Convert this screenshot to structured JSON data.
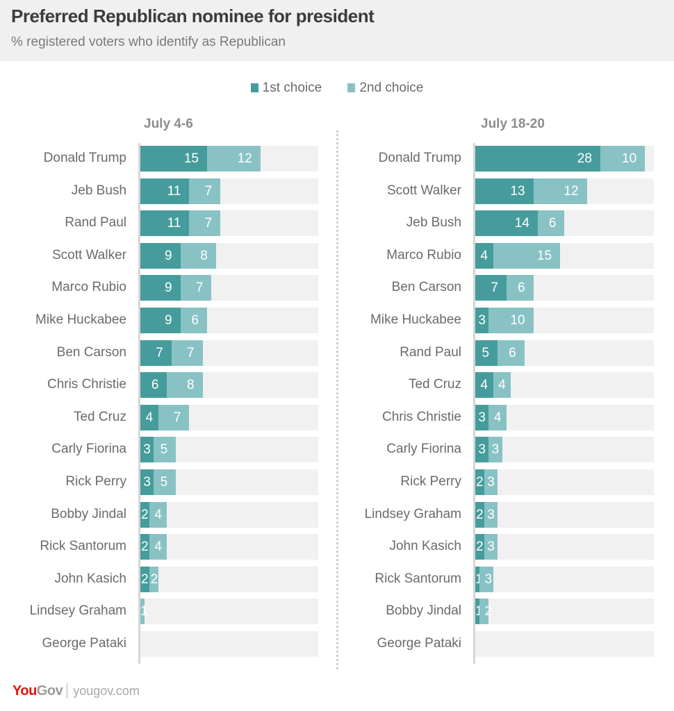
{
  "header": {
    "title": "Preferred Republican nominee for president",
    "subtitle": "% registered voters who identify as Republican"
  },
  "footer": {
    "logo_you": "You",
    "logo_gov": "Gov",
    "url": "yougov.com"
  },
  "colors": {
    "first_choice": "#469c9c",
    "second_choice": "#89c2c4",
    "track": "#f1f1f1",
    "logo_red": "#e3120b"
  },
  "chart_data": [
    {
      "type": "bar",
      "orientation": "horizontal",
      "stacked": true,
      "title": "July 4-6",
      "legend": [
        "1st choice",
        "2nd choice"
      ],
      "legend_position": "top-center",
      "xlim": [
        0,
        40
      ],
      "categories": [
        "Donald Trump",
        "Jeb Bush",
        "Rand Paul",
        "Scott Walker",
        "Marco Rubio",
        "Mike Huckabee",
        "Ben Carson",
        "Chris Christie",
        "Ted Cruz",
        "Carly Fiorina",
        "Rick Perry",
        "Bobby Jindal",
        "Rick Santorum",
        "John Kasich",
        "Lindsey Graham",
        "George Pataki"
      ],
      "series": [
        {
          "name": "1st choice",
          "values": [
            15,
            11,
            11,
            9,
            9,
            9,
            7,
            6,
            4,
            3,
            3,
            2,
            2,
            2,
            0,
            0
          ]
        },
        {
          "name": "2nd choice",
          "values": [
            12,
            7,
            7,
            8,
            7,
            6,
            7,
            8,
            7,
            5,
            5,
            4,
            4,
            2,
            1,
            0
          ]
        }
      ]
    },
    {
      "type": "bar",
      "orientation": "horizontal",
      "stacked": true,
      "title": "July 18-20",
      "legend": [
        "1st choice",
        "2nd choice"
      ],
      "legend_position": "top-center",
      "xlim": [
        0,
        40
      ],
      "categories": [
        "Donald Trump",
        "Scott Walker",
        "Jeb Bush",
        "Marco Rubio",
        "Ben Carson",
        "Mike Huckabee",
        "Rand Paul",
        "Ted Cruz",
        "Chris Christie",
        "Carly Fiorina",
        "Rick Perry",
        "Lindsey Graham",
        "John Kasich",
        "Rick Santorum",
        "Bobby Jindal",
        "George Pataki"
      ],
      "series": [
        {
          "name": "1st choice",
          "values": [
            28,
            13,
            14,
            4,
            7,
            3,
            5,
            4,
            3,
            3,
            2,
            2,
            2,
            1,
            1,
            0
          ]
        },
        {
          "name": "2nd choice",
          "values": [
            10,
            12,
            6,
            15,
            6,
            10,
            6,
            4,
            4,
            3,
            3,
            3,
            3,
            3,
            2,
            0
          ]
        }
      ]
    }
  ]
}
